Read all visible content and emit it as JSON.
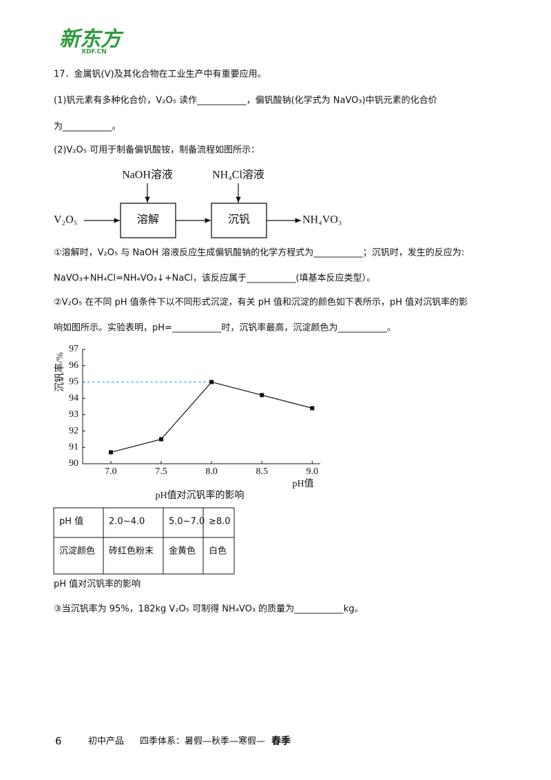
{
  "logo": {
    "name": "新东方",
    "url": "XDF.CN"
  },
  "question": {
    "stem": "17．金属钒(V)及其化合物在工业生产中有重要应用。",
    "part1": [
      "(1)钒元素有多种化合价，V₂O₅ 读作___________，偏钒酸钠(化学式为 NaVO₃)中钒元素的化合价",
      "为___________。"
    ],
    "part2_intro": "(2)V₂O₅ 可用于制备偏钒酸铵，制备流程如图所示：",
    "sub1": [
      "①溶解时，V₂O₅ 与 NaOH 溶液反应生成偏钒酸钠的化学方程式为___________；沉钒时，发生的反应为:",
      "NaVO₃+NH₄Cl=NH₄VO₃↓+NaCl，该反应属于___________(填基本反应类型）。"
    ],
    "sub2": [
      "②V₂O₅ 在不同 pH 值条件下以不同形式沉淀，有关 pH 值和沉淀的颜色如下表所示，pH 值对沉钒率的影",
      "响如图所示。实验表明，pH=___________时，沉钒率最高，沉淀颜色为___________。"
    ],
    "table_caption": "pH 值对沉钒率的影响",
    "sub3": "③当沉钒率为 95%，182kg V₂O₅ 可制得 NH₄VO₃ 的质量为___________kg。"
  },
  "flow": {
    "input": "V₂O₅",
    "reagent1": "NaOH溶液",
    "step1": "溶解",
    "reagent2": "NH₄Cl溶液",
    "step2": "沉钒",
    "output": "NH₄VO₃"
  },
  "chart_data": {
    "type": "line",
    "title": "pH值对沉钒率的影响",
    "x_label": "pH值",
    "y_label": "沉钒率/%",
    "x": [
      7,
      7.5,
      8,
      8.5,
      9
    ],
    "series": [
      {
        "name": "沉钒率",
        "color": "#111111",
        "values": [
          90.7,
          91.5,
          95.0,
          94.2,
          93.4
        ]
      }
    ],
    "xlim": [
      6.72,
      9.08
    ],
    "ylim": [
      90,
      97
    ],
    "xticks": [
      {
        "value": 7,
        "label": "7.0"
      },
      {
        "value": 7.5,
        "label": "7.5"
      },
      {
        "value": 8,
        "label": "8.0"
      },
      {
        "value": 8.5,
        "label": "8.5"
      },
      {
        "value": 9,
        "label": "9.0"
      }
    ],
    "yticks": [
      90,
      91,
      92,
      93,
      94,
      95,
      96,
      97
    ],
    "reference_line": {
      "y": 95,
      "color": "#2aa6c9"
    }
  },
  "table": {
    "rows": [
      [
        "pH 值",
        "2.0~4.0",
        "5.0~7.0",
        "≥8.0"
      ],
      [
        "沉淀颜色",
        "砖红色粉末",
        "金黄色",
        "白色"
      ]
    ]
  },
  "footer": {
    "page": "6",
    "product": "初中产品",
    "system": "四季体系：暑假—秋季—寒假—",
    "current": "春季"
  }
}
